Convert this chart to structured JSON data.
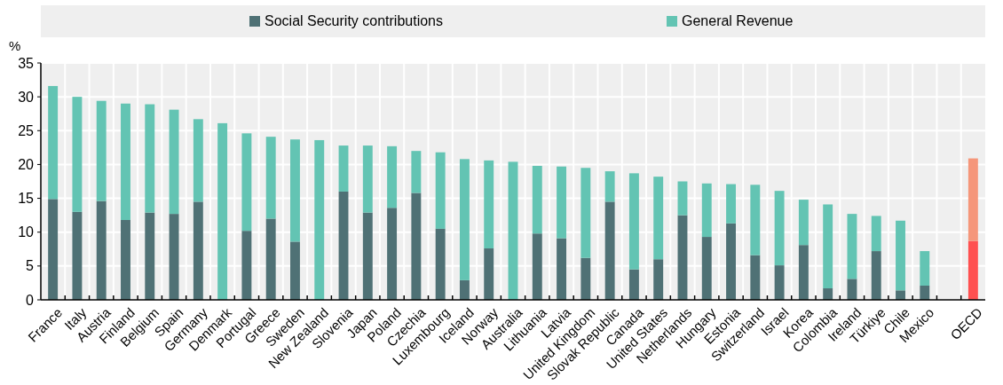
{
  "chart_data": {
    "type": "bar",
    "stacked": true,
    "ylabel": "%",
    "ylim": [
      0,
      35
    ],
    "yticks": [
      0,
      5,
      10,
      15,
      20,
      25,
      30,
      35
    ],
    "grid": true,
    "legend": "top",
    "categories": [
      "France",
      "Italy",
      "Austria",
      "Finland",
      "Belgium",
      "Spain",
      "Germany",
      "Denmark",
      "Portugal",
      "Greece",
      "Sweden",
      "New Zealand",
      "Slovenia",
      "Japan",
      "Poland",
      "Czechia",
      "Luxembourg",
      "Iceland",
      "Norway",
      "Australia",
      "Lithuania",
      "Latvia",
      "United Kingdom",
      "Slovak Republic",
      "Canada",
      "United States",
      "Netherlands",
      "Hungary",
      "Estonia",
      "Switzerland",
      "Israel",
      "Korea",
      "Colombia",
      "Ireland",
      "Türkiye",
      "Chile",
      "Mexico",
      null,
      "OECD"
    ],
    "series": [
      {
        "name": "Social Security contributions",
        "color": "#4f7175",
        "colors": [
          "#4f7175",
          "#4f7175",
          "#4f7175",
          "#4f7175",
          "#4f7175",
          "#4f7175",
          "#4f7175",
          "#4f7175",
          "#4f7175",
          "#4f7175",
          "#4f7175",
          "#4f7175",
          "#4f7175",
          "#4f7175",
          "#4f7175",
          "#4f7175",
          "#4f7175",
          "#4f7175",
          "#4f7175",
          "#4f7175",
          "#4f7175",
          "#4f7175",
          "#4f7175",
          "#4f7175",
          "#4f7175",
          "#4f7175",
          "#4f7175",
          "#4f7175",
          "#4f7175",
          "#4f7175",
          "#4f7175",
          "#4f7175",
          "#4f7175",
          "#4f7175",
          "#4f7175",
          "#4f7175",
          "#4f7175",
          null,
          "#ff5050"
        ],
        "values": [
          14.9,
          13.0,
          14.6,
          11.8,
          12.9,
          12.7,
          14.5,
          0,
          10.2,
          12.0,
          8.6,
          0,
          16.0,
          12.9,
          13.6,
          15.8,
          10.5,
          2.9,
          7.6,
          0,
          9.8,
          9.1,
          6.2,
          14.5,
          4.5,
          6.0,
          12.5,
          9.3,
          11.3,
          6.6,
          5.1,
          8.1,
          1.7,
          3.1,
          7.2,
          1.4,
          2.1,
          null,
          8.7
        ]
      },
      {
        "name": "General Revenue",
        "color": "#63c4b3",
        "colors": [
          "#63c4b3",
          "#63c4b3",
          "#63c4b3",
          "#63c4b3",
          "#63c4b3",
          "#63c4b3",
          "#63c4b3",
          "#63c4b3",
          "#63c4b3",
          "#63c4b3",
          "#63c4b3",
          "#63c4b3",
          "#63c4b3",
          "#63c4b3",
          "#63c4b3",
          "#63c4b3",
          "#63c4b3",
          "#63c4b3",
          "#63c4b3",
          "#63c4b3",
          "#63c4b3",
          "#63c4b3",
          "#63c4b3",
          "#63c4b3",
          "#63c4b3",
          "#63c4b3",
          "#63c4b3",
          "#63c4b3",
          "#63c4b3",
          "#63c4b3",
          "#63c4b3",
          "#63c4b3",
          "#63c4b3",
          "#63c4b3",
          "#63c4b3",
          "#63c4b3",
          "#63c4b3",
          null,
          "#f5967a"
        ],
        "values": [
          16.7,
          17.0,
          14.8,
          17.2,
          16.0,
          15.4,
          12.2,
          26.1,
          14.4,
          12.1,
          15.1,
          23.6,
          6.8,
          9.9,
          9.1,
          6.2,
          11.3,
          17.9,
          13.0,
          20.4,
          10.0,
          10.6,
          13.3,
          4.5,
          14.2,
          12.2,
          5.0,
          7.9,
          5.8,
          10.4,
          11.0,
          6.7,
          12.4,
          9.6,
          5.2,
          10.3,
          5.1,
          null,
          12.2
        ]
      }
    ]
  }
}
